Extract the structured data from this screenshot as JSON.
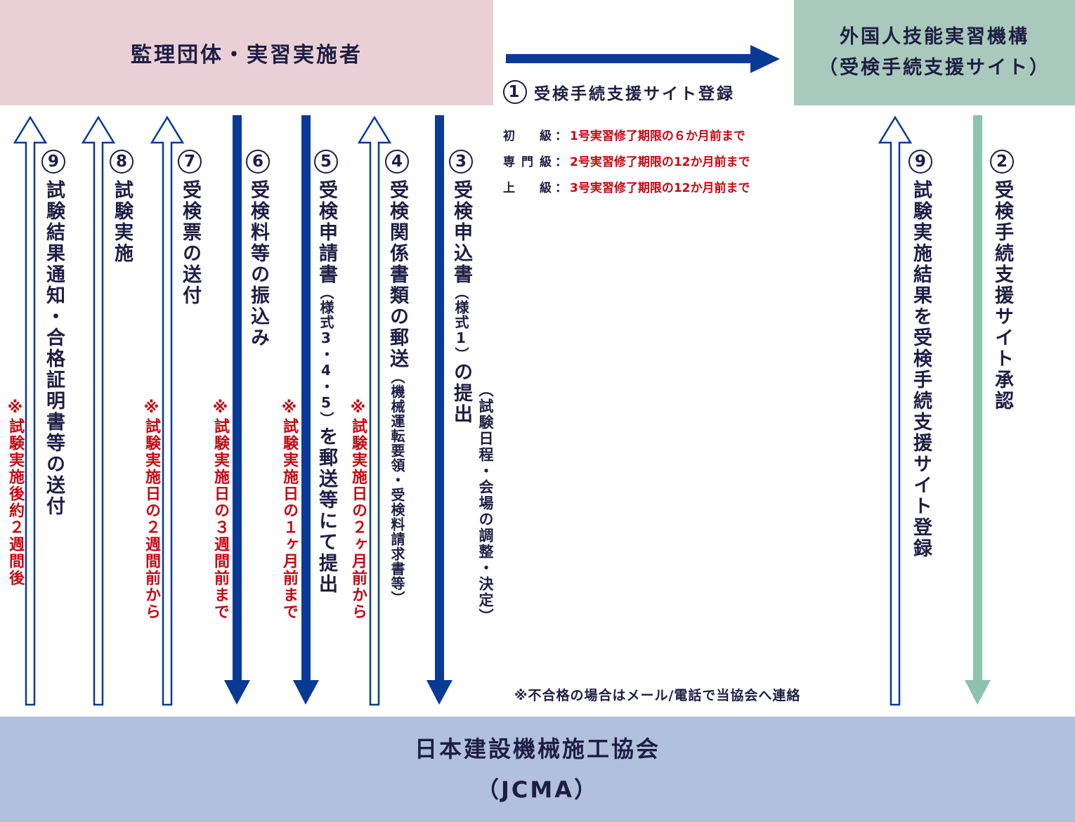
{
  "colors": {
    "navy": "#083a96",
    "green": "#8dc2ab",
    "red": "#c30a14",
    "pink_box": "#ead0d5",
    "green_box": "#a9c9bc",
    "blue_box": "#b1c0dd"
  },
  "boxes": {
    "org": "監理団体・実習実施者",
    "oti_line1": "外国人技能実習機構",
    "oti_line2": "（受検手続支援サイト）",
    "jcma_line1": "日本建設機械施工協会",
    "jcma_line2": "（JCMA）"
  },
  "step1": {
    "num": "1",
    "label": "受検手続支援サイト登録"
  },
  "grades": [
    {
      "level": "初　級",
      "colon": "：",
      "deadline": "1号実習修了期限の６か月前まで"
    },
    {
      "level": "専門級",
      "colon": "：",
      "deadline": "2号実習修了期限の12か月前まで"
    },
    {
      "level": "上　級",
      "colon": "：",
      "deadline": "3号実習修了期限の12か月前まで"
    }
  ],
  "steps": {
    "s9a": {
      "num": "9",
      "label": "試験結果通知・合格証明書等の送付",
      "note": "※試験実施後約２週間後"
    },
    "s8": {
      "num": "8",
      "label": "試験実施"
    },
    "s7": {
      "num": "7",
      "label": "受検票の送付",
      "note": "※試験実施日の２週間前から"
    },
    "s6": {
      "num": "6",
      "label": "受検料等の振込み",
      "note": "※試験実施日の３週間前まで"
    },
    "s5": {
      "num": "5",
      "label_a": "受検申請書",
      "label_b": "（様式3・4・5）",
      "label_c": "を郵送等にて提出",
      "note": "※試験実施日の１ヶ月前まで"
    },
    "s4": {
      "num": "4",
      "label": "受検関係書類の郵送",
      "sub": "（機械運転要領・受検料請求書等）",
      "note": "※試験実施日の２ヶ月前から"
    },
    "s3": {
      "num": "3",
      "label_a": "受検申込書",
      "label_b": "（様式1）",
      "label_c": "の提出",
      "sub": "（試験日程・会場の調整・決定）"
    },
    "s9b": {
      "num": "9",
      "label": "試験実施結果を受検手続支援サイト登録"
    },
    "s2": {
      "num": "2",
      "label": "受検手続支援サイト承認"
    }
  },
  "fail_note": "※不合格の場合はメール/電話で当協会へ連絡"
}
